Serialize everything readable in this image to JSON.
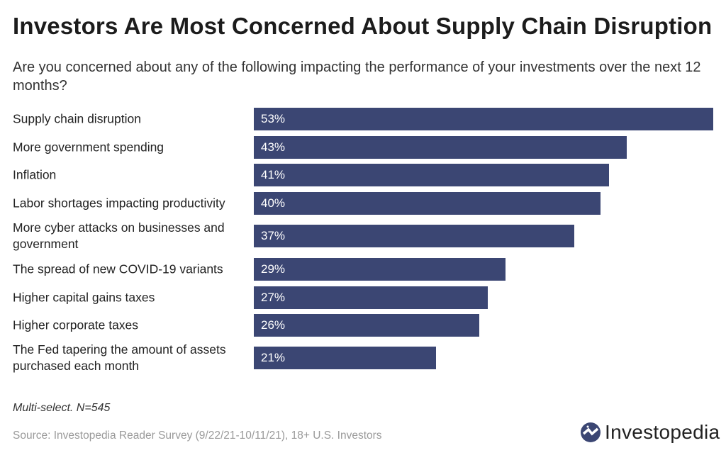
{
  "title": "Investors Are Most Concerned About Supply Chain Disruption",
  "subtitle": "Are you concerned about any of the following impacting the performance of your investments over the next 12 months?",
  "note": "Multi-select. N=545",
  "source": "Source: Investopedia Reader Survey (9/22/21-10/11/21), 18+ U.S. Investors",
  "logo": "Investopedia",
  "colors": {
    "bar": "#3b4673",
    "bar_label": "#ffffff"
  },
  "chart_data": {
    "type": "bar",
    "orientation": "horizontal",
    "categories": [
      "Supply chain disruption",
      "More government spending",
      "Inflation",
      "Labor shortages impacting productivity",
      "More cyber attacks on businesses and government",
      "The spread of new COVID-19 variants",
      "Higher capital gains taxes",
      "Higher corporate taxes",
      "The Fed tapering the amount of assets purchased each month"
    ],
    "values": [
      53,
      43,
      41,
      40,
      37,
      29,
      27,
      26,
      21
    ],
    "data_labels": [
      "53%",
      "43%",
      "41%",
      "40%",
      "37%",
      "29%",
      "27%",
      "26%",
      "21%"
    ],
    "unit": "%",
    "grid": false,
    "legend": "none"
  }
}
